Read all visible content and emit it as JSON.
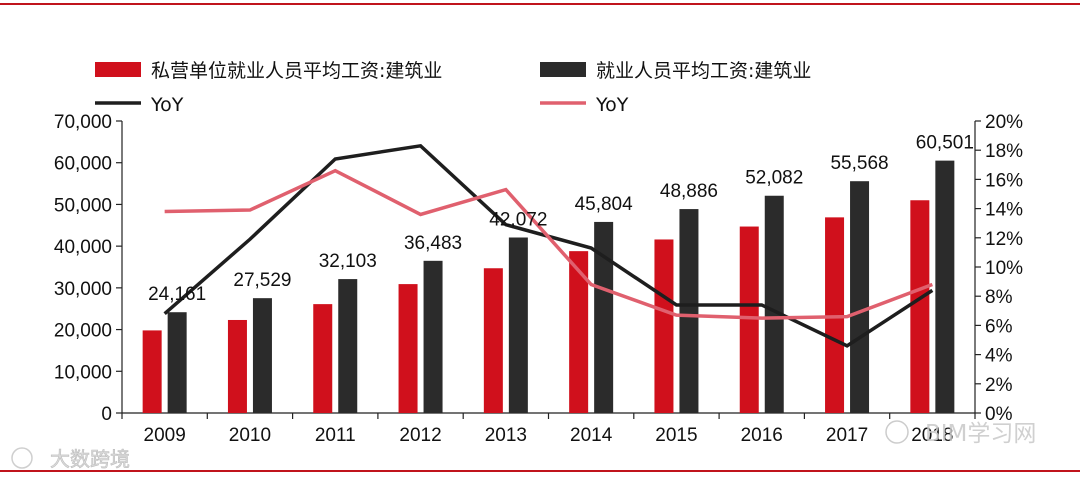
{
  "chart_data": {
    "type": "bar",
    "categories": [
      "2009",
      "2010",
      "2011",
      "2012",
      "2013",
      "2014",
      "2015",
      "2016",
      "2017",
      "2018"
    ],
    "series": [
      {
        "name": "私营单位就业人员平均工资:建筑业",
        "kind": "bar",
        "axis": "left",
        "color": "#d0101c",
        "values": [
          19800,
          22300,
          26100,
          30900,
          34700,
          38800,
          41600,
          44700,
          46900,
          51000
        ]
      },
      {
        "name": "就业人员平均工资:建筑业",
        "kind": "bar",
        "axis": "left",
        "color": "#2b2b2b",
        "values": [
          24161,
          27529,
          32103,
          36483,
          42072,
          45804,
          48886,
          52082,
          55568,
          60501
        ],
        "labels": [
          "24,161",
          "27,529",
          "32,103",
          "36,483",
          "42,072",
          "45,804",
          "48,886",
          "52,082",
          "55,568",
          "60,501"
        ]
      },
      {
        "name": "YoY",
        "kind": "line",
        "axis": "right",
        "color": "#1e1e1e",
        "values": [
          6.8,
          11.9,
          17.4,
          18.3,
          12.9,
          11.3,
          7.4,
          7.4,
          4.6,
          8.4
        ]
      },
      {
        "name": "YoY",
        "kind": "line",
        "axis": "right",
        "color": "#e0606e",
        "values": [
          13.8,
          13.9,
          16.6,
          13.6,
          15.3,
          8.8,
          6.7,
          6.5,
          6.6,
          8.8
        ]
      }
    ],
    "y_left": {
      "min": 0,
      "max": 70000,
      "step": 10000,
      "ticks": [
        "0",
        "10,000",
        "20,000",
        "30,000",
        "40,000",
        "50,000",
        "60,000",
        "70,000"
      ]
    },
    "y_right": {
      "min": 0,
      "max": 20,
      "step": 2,
      "ticks": [
        "0%",
        "2%",
        "4%",
        "6%",
        "8%",
        "10%",
        "12%",
        "14%",
        "16%",
        "18%",
        "20%"
      ]
    },
    "grid": false,
    "legend_position": "top"
  },
  "watermarks": {
    "bottom_left": "大数跨境",
    "bottom_right": "BIM学习网"
  }
}
